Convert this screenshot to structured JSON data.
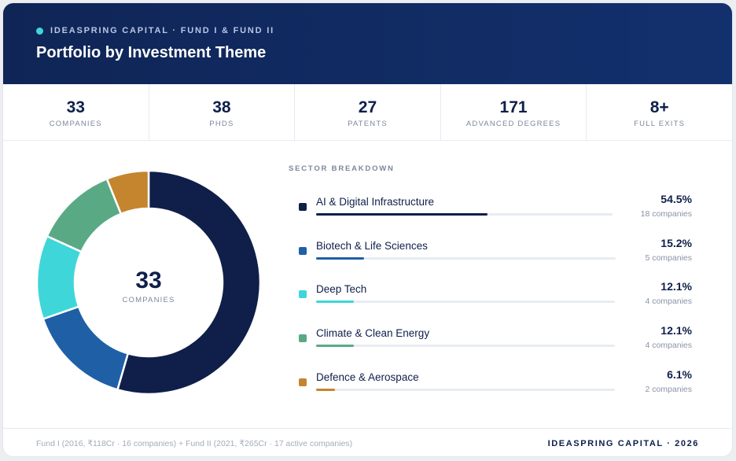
{
  "header": {
    "eyebrow": "IDEASPRING CAPITAL · FUND I & FUND II",
    "title": "Portfolio by Investment Theme"
  },
  "stats": [
    {
      "value": "33",
      "label": "COMPANIES"
    },
    {
      "value": "38",
      "label": "PHDS"
    },
    {
      "value": "27",
      "label": "PATENTS"
    },
    {
      "value": "171",
      "label": "ADVANCED DEGREES"
    },
    {
      "value": "8+",
      "label": "FULL EXITS"
    }
  ],
  "donut": {
    "center_value": "33",
    "center_label": "COMPANIES"
  },
  "breakdown": {
    "title": "SECTOR BREAKDOWN"
  },
  "chart_data": {
    "type": "pie",
    "donut": true,
    "categories": [
      "AI & Digital Infrastructure",
      "Biotech & Life Sciences",
      "Deep Tech",
      "Climate & Clean Energy",
      "Defence & Aerospace"
    ],
    "values": [
      54.5,
      15.2,
      12.1,
      12.1,
      6.1
    ],
    "value_labels": [
      "54.5%",
      "15.2%",
      "12.1%",
      "12.1%",
      "6.1%"
    ],
    "counts": [
      "18 companies",
      "5 companies",
      "4 companies",
      "4 companies",
      "2 companies"
    ],
    "colors": [
      "#0f1f4a",
      "#1f5fa6",
      "#3fd6d9",
      "#5aa985",
      "#c4852e"
    ],
    "title": "SECTOR BREAKDOWN"
  },
  "footer": {
    "note": "Fund I (2016, ₹118Cr · 16 companies) + Fund II (2021, ₹265Cr · 17 active companies)",
    "brand": "IDEASPRING CAPITAL · 2026"
  }
}
